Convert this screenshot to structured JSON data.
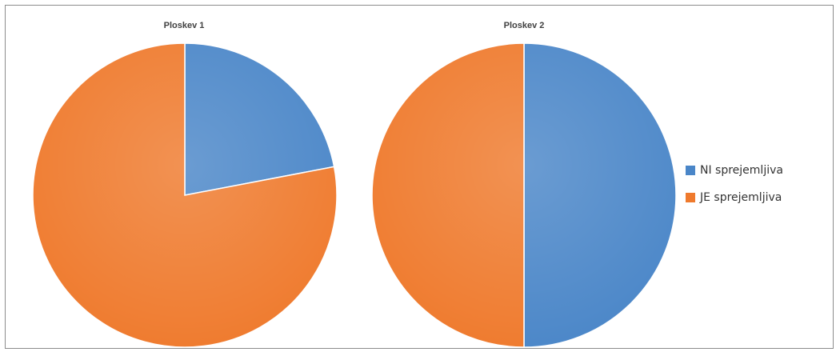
{
  "chart_data": [
    {
      "type": "pie",
      "title": "Ploskev  1",
      "categories": [
        "NI sprejemljiva",
        "JE sprejemljiva"
      ],
      "values": [
        22,
        78
      ],
      "colors": [
        "#4a86c8",
        "#ef7a2d"
      ]
    },
    {
      "type": "pie",
      "title": "Ploskev  2",
      "categories": [
        "NI sprejemljiva",
        "JE sprejemljiva"
      ],
      "values": [
        50,
        50
      ],
      "colors": [
        "#4a86c8",
        "#ef7a2d"
      ]
    }
  ],
  "legend": {
    "placement": "right",
    "items": [
      {
        "label": "NI sprejemljiva",
        "color": "#4a86c8"
      },
      {
        "label": "JE sprejemljiva",
        "color": "#ef7a2d"
      }
    ]
  }
}
